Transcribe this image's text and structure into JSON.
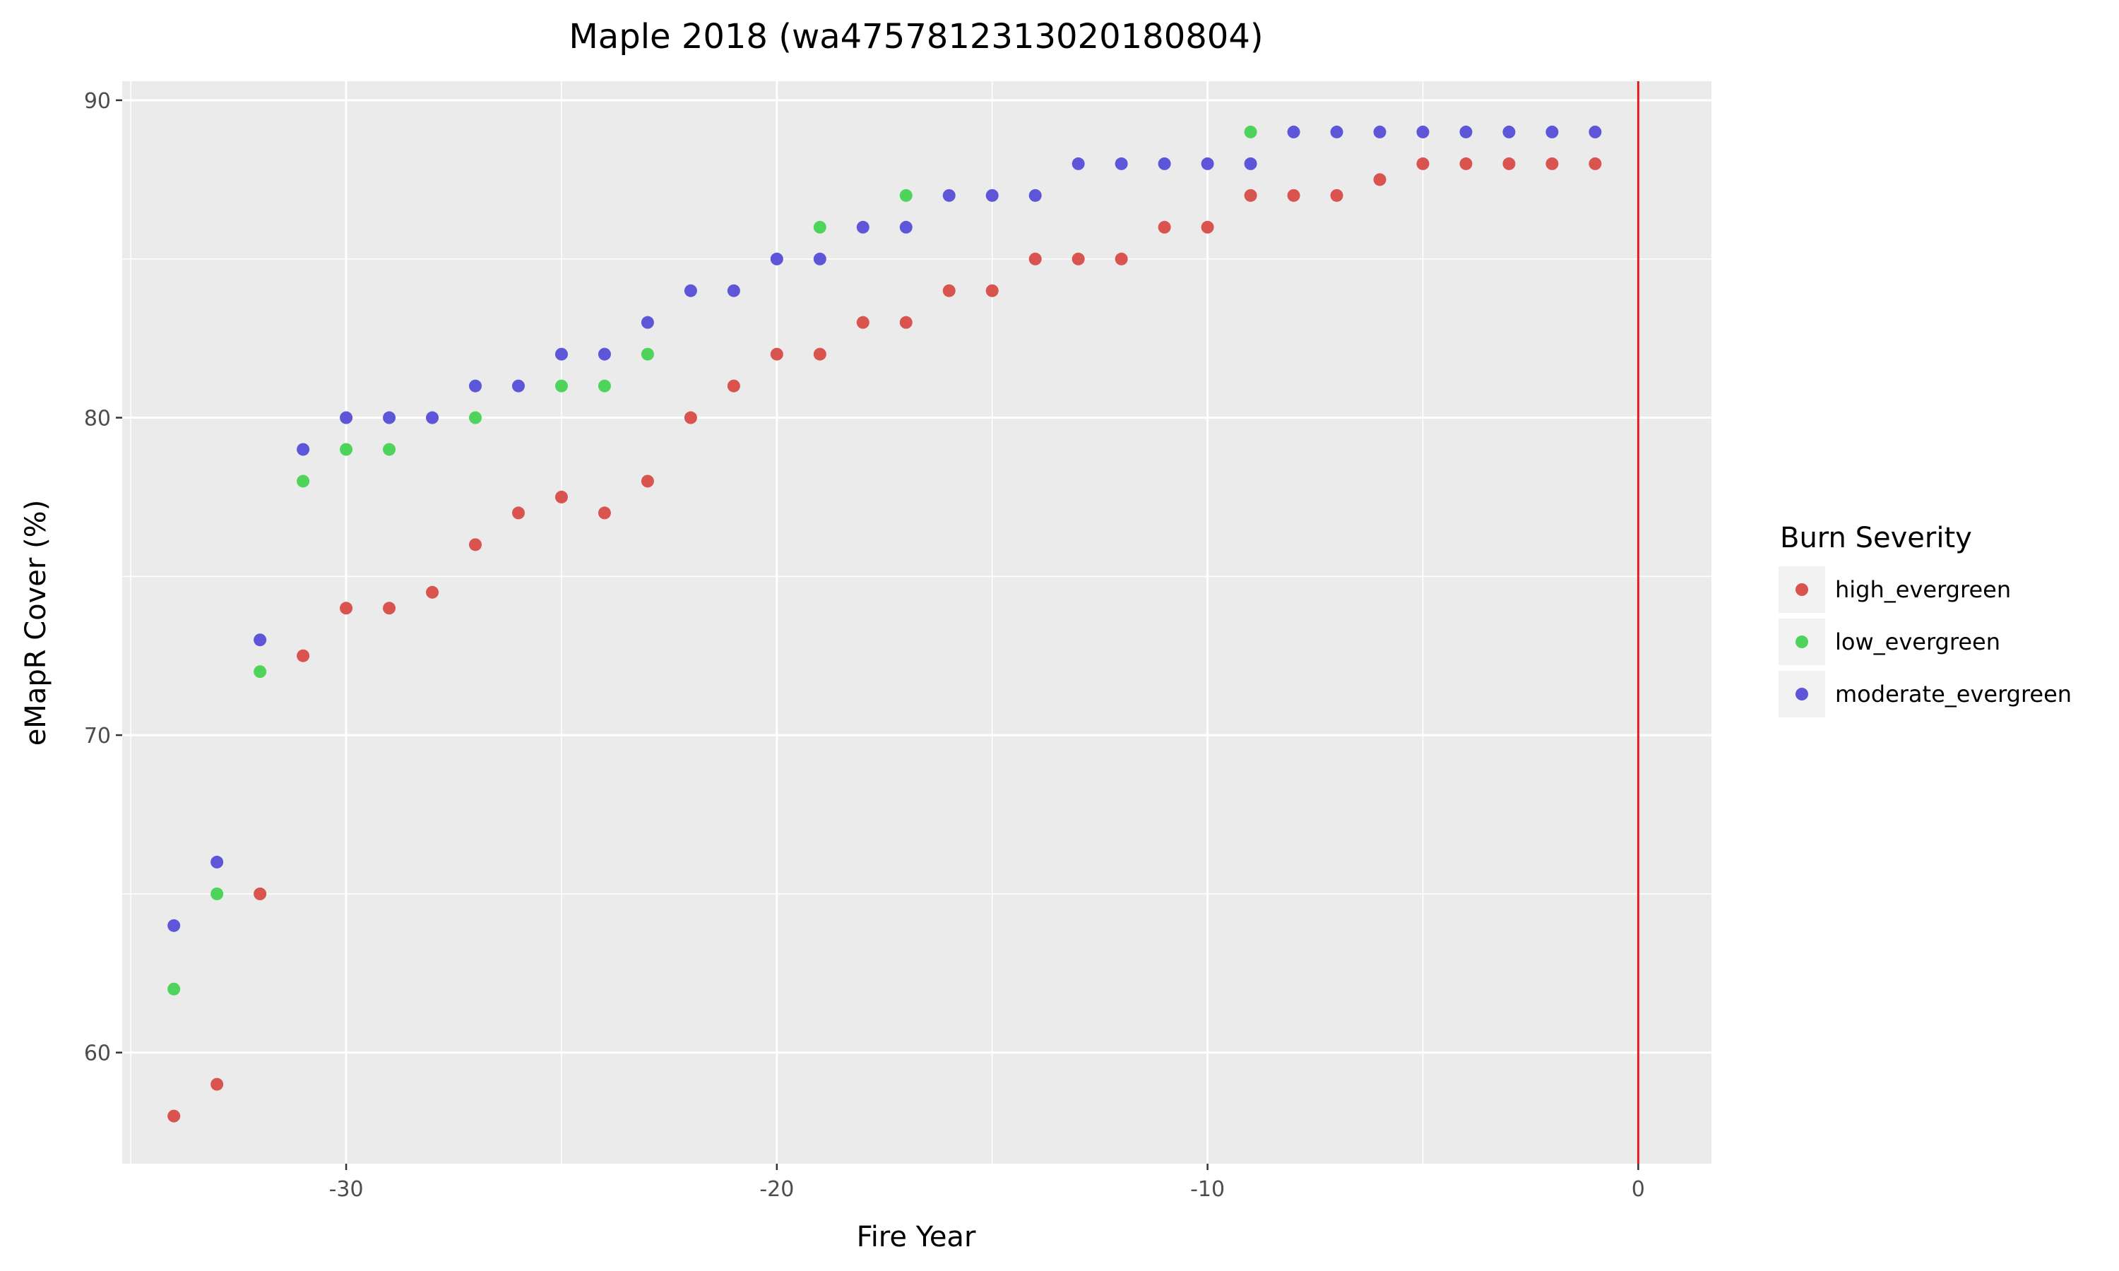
{
  "chart_data": {
    "type": "scatter",
    "title": "Maple 2018 (wa4757812313020180804)",
    "xlabel": "Fire Year",
    "ylabel": "eMapR Cover (%)",
    "xlim": [
      -35.2,
      1.7
    ],
    "ylim": [
      56.5,
      90.6
    ],
    "xticks": [
      -30,
      -20,
      -10,
      0
    ],
    "yticks": [
      60,
      70,
      80,
      90
    ],
    "grid": true,
    "legend_title": "Burn Severity",
    "legend_position": "right",
    "vline": {
      "x": 0,
      "color": "#e41a1c"
    },
    "series": [
      {
        "name": "high_evergreen",
        "color": "#d9534f",
        "points": [
          [
            -34,
            58
          ],
          [
            -33,
            59
          ],
          [
            -32,
            65
          ],
          [
            -31,
            72.5
          ],
          [
            -30,
            74
          ],
          [
            -29,
            74
          ],
          [
            -28,
            74.5
          ],
          [
            -27,
            76
          ],
          [
            -26,
            77
          ],
          [
            -25,
            77.5
          ],
          [
            -24,
            77
          ],
          [
            -23,
            78
          ],
          [
            -22,
            80
          ],
          [
            -21,
            81
          ],
          [
            -20,
            82
          ],
          [
            -19,
            82
          ],
          [
            -18,
            83
          ],
          [
            -17,
            83
          ],
          [
            -16,
            84
          ],
          [
            -15,
            84
          ],
          [
            -14,
            85
          ],
          [
            -13,
            85
          ],
          [
            -12,
            85
          ],
          [
            -11,
            86
          ],
          [
            -10,
            86
          ],
          [
            -9,
            87
          ],
          [
            -8,
            87
          ],
          [
            -7,
            87
          ],
          [
            -6,
            87.5
          ],
          [
            -5,
            88
          ],
          [
            -4,
            88
          ],
          [
            -3,
            88
          ],
          [
            -2,
            88
          ],
          [
            -1,
            88
          ]
        ]
      },
      {
        "name": "low_evergreen",
        "color": "#4ed45a",
        "points": [
          [
            -34,
            62
          ],
          [
            -33,
            65
          ],
          [
            -32,
            72
          ],
          [
            -31,
            78
          ],
          [
            -30,
            79
          ],
          [
            -29,
            79
          ],
          [
            -27,
            80
          ],
          [
            -25,
            81
          ],
          [
            -24,
            81
          ],
          [
            -23,
            82
          ],
          [
            -19,
            86
          ],
          [
            -17,
            87
          ],
          [
            -9,
            89
          ]
        ]
      },
      {
        "name": "moderate_evergreen",
        "color": "#5e56d9",
        "points": [
          [
            -34,
            64
          ],
          [
            -33,
            66
          ],
          [
            -32,
            73
          ],
          [
            -31,
            79
          ],
          [
            -30,
            80
          ],
          [
            -29,
            80
          ],
          [
            -28,
            80
          ],
          [
            -27,
            81
          ],
          [
            -26,
            81
          ],
          [
            -25,
            82
          ],
          [
            -24,
            82
          ],
          [
            -23,
            83
          ],
          [
            -22,
            84
          ],
          [
            -21,
            84
          ],
          [
            -20,
            85
          ],
          [
            -19,
            85
          ],
          [
            -18,
            86
          ],
          [
            -17,
            86
          ],
          [
            -16,
            87
          ],
          [
            -15,
            87
          ],
          [
            -14,
            87
          ],
          [
            -13,
            88
          ],
          [
            -12,
            88
          ],
          [
            -11,
            88
          ],
          [
            -10,
            88
          ],
          [
            -9,
            88
          ],
          [
            -8,
            89
          ],
          [
            -7,
            89
          ],
          [
            -6,
            89
          ],
          [
            -5,
            89
          ],
          [
            -4,
            89
          ],
          [
            -3,
            89
          ],
          [
            -2,
            89
          ],
          [
            -1,
            89
          ]
        ]
      }
    ]
  }
}
